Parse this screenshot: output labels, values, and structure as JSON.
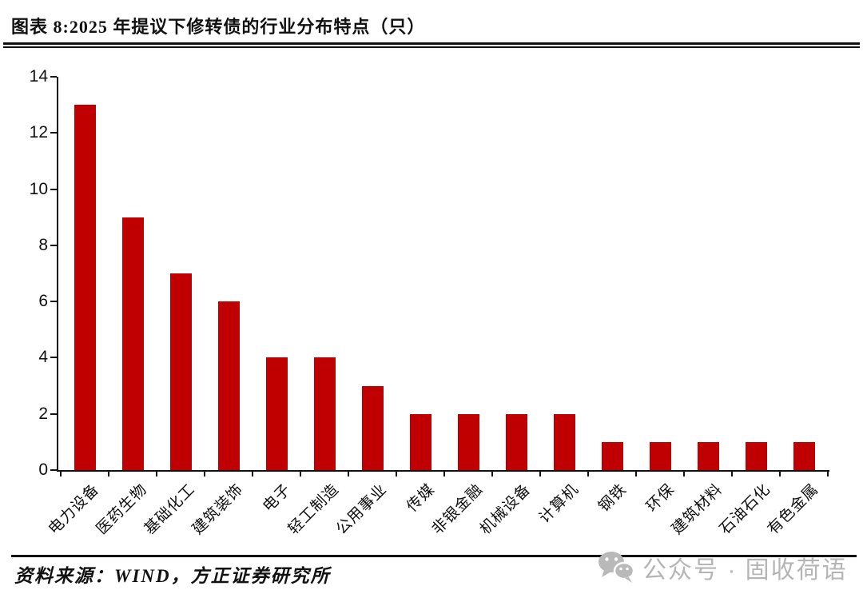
{
  "figure": {
    "title": "图表 8:2025 年提议下修转债的行业分布特点（只）"
  },
  "chart_data": {
    "type": "bar",
    "title": "图表 8:2025 年提议下修转债的行业分布特点（只）",
    "categories": [
      "电力设备",
      "医药生物",
      "基础化工",
      "建筑装饰",
      "电子",
      "轻工制造",
      "公用事业",
      "传媒",
      "非银金融",
      "机械设备",
      "计算机",
      "钢铁",
      "环保",
      "建筑材料",
      "石油石化",
      "有色金属"
    ],
    "values": [
      13,
      9,
      7,
      6,
      4,
      4,
      3,
      2,
      2,
      2,
      2,
      1,
      1,
      1,
      1,
      1
    ],
    "xlabel": "",
    "ylabel": "",
    "ylim": [
      0,
      14
    ],
    "yticks": [
      0,
      2,
      4,
      6,
      8,
      10,
      12,
      14
    ],
    "x_tick_label_rotation": -45,
    "grid": false,
    "legend": false,
    "bar_color": "#C00000",
    "axis_color": "#111111"
  },
  "footer": {
    "source": "资料来源：WIND，方正证券研究所",
    "watermark": "公众号 · 固收荷语",
    "watermark_color": "#b5b5b5",
    "wechat_icon_color": "#b9b9b9"
  }
}
